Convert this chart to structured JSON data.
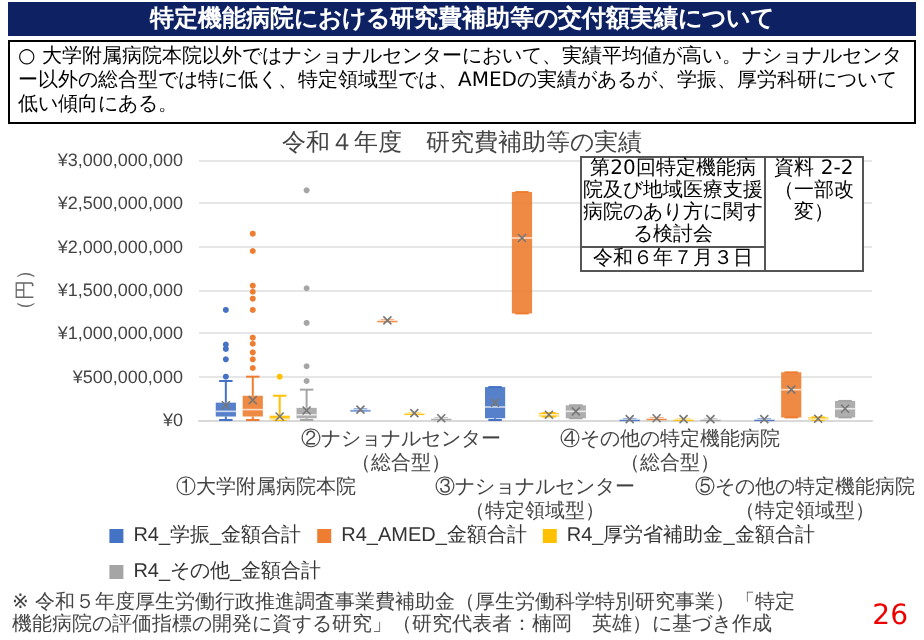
{
  "chart_data": {
    "type": "box",
    "title": "特定機能病院における研究費補助等の交付額実績について",
    "subtitle": "令和４年度　研究費補助等の実績",
    "ylabel": "（円）",
    "annotations": [
      "○ 大学附属病院本院以外ではナショナルセンターにおいて、実績平均値が高い。ナショナルセンター以外の総合型では特に低く、特定領域型では、AMEDの実績があるが、学振、厚労科研について低い傾向にある。",
      "第20回特定機能病院及び地域医療支援病院のあり方に関する検討会",
      "令和６年７月３日",
      "資料 2-2",
      "（一部改変）",
      "※ 令和５年度厚生労働行政推進調査事業費補助金（厚生労働科学特別研究事業）「特定機能病院の評価指標の開発に資する研究」（研究代表者：楠岡　英雄）に基づき作成",
      "26"
    ],
    "categories": [
      "①大学附属病院本院",
      "②ナショナルセンター（総合型）",
      "③ナショナルセンター（特定領域型）",
      "④その他の特定機能病院（総合型）",
      "⑤その他の特定機能病院（特定領域型）"
    ],
    "series": [
      {
        "name": "R4_学振_金額合計",
        "color": "#4472c4",
        "boxes": [
          {
            "low": 0,
            "q1": 40000000,
            "median": 100000000,
            "q3": 200000000,
            "high": 450000000,
            "mean": 170000000,
            "outliers": [
              500000000,
              700000000,
              820000000,
              870000000,
              1270000000
            ]
          },
          {
            "low": 120000000,
            "q1": 120000000,
            "median": 120000000,
            "q3": 120000000,
            "high": 120000000,
            "mean": 120000000
          },
          {
            "low": 0,
            "q1": 20000000,
            "median": 150000000,
            "q3": 380000000,
            "high": 380000000,
            "mean": 200000000
          },
          {
            "low": 10000000,
            "q1": 10000000,
            "median": 10000000,
            "q3": 10000000,
            "high": 10000000,
            "mean": 10000000
          },
          {
            "low": 10000000,
            "q1": 10000000,
            "median": 10000000,
            "q3": 10000000,
            "high": 10000000,
            "mean": 10000000
          }
        ]
      },
      {
        "name": "R4_AMED_金額合計",
        "color": "#ed7d31",
        "boxes": [
          {
            "low": 0,
            "q1": 40000000,
            "median": 120000000,
            "q3": 280000000,
            "high": 500000000,
            "mean": 230000000,
            "outliers": [
              600000000,
              700000000,
              780000000,
              880000000,
              950000000,
              1270000000,
              1400000000,
              1480000000,
              1550000000,
              1950000000,
              2150000000
            ]
          },
          {
            "low": 1150000000,
            "q1": 1150000000,
            "median": 1150000000,
            "q3": 1150000000,
            "high": 1150000000,
            "mean": 1150000000
          },
          {
            "low": 1230000000,
            "q1": 1230000000,
            "median": 2100000000,
            "q3": 2630000000,
            "high": 2630000000,
            "mean": 2100000000
          },
          {
            "low": 20000000,
            "q1": 20000000,
            "median": 20000000,
            "q3": 20000000,
            "high": 20000000,
            "mean": 20000000
          },
          {
            "low": 30000000,
            "q1": 30000000,
            "median": 350000000,
            "q3": 550000000,
            "high": 550000000,
            "mean": 350000000
          }
        ]
      },
      {
        "name": "R4_厚労省補助金_金額合計",
        "color": "#ffc000",
        "boxes": [
          {
            "low": 0,
            "q1": 0,
            "median": 10000000,
            "q3": 50000000,
            "high": 280000000,
            "mean": 40000000,
            "outliers": [
              500000000
            ]
          },
          {
            "low": 80000000,
            "q1": 80000000,
            "median": 80000000,
            "q3": 80000000,
            "high": 80000000,
            "mean": 80000000
          },
          {
            "low": 40000000,
            "q1": 40000000,
            "median": 60000000,
            "q3": 80000000,
            "high": 80000000,
            "mean": 60000000
          },
          {
            "low": 10000000,
            "q1": 10000000,
            "median": 10000000,
            "q3": 10000000,
            "high": 10000000,
            "mean": 10000000
          },
          {
            "low": 0,
            "q1": 0,
            "median": 10000000,
            "q3": 30000000,
            "high": 30000000,
            "mean": 15000000
          }
        ]
      },
      {
        "name": "R4_その他_金額合計",
        "color": "#a5a5a5",
        "boxes": [
          {
            "low": 0,
            "q1": 20000000,
            "median": 60000000,
            "q3": 140000000,
            "high": 350000000,
            "mean": 110000000,
            "outliers": [
              450000000,
              620000000,
              1120000000,
              1520000000,
              2650000000
            ]
          },
          {
            "low": 20000000,
            "q1": 20000000,
            "median": 20000000,
            "q3": 20000000,
            "high": 20000000,
            "mean": 20000000
          },
          {
            "low": 20000000,
            "q1": 20000000,
            "median": 100000000,
            "q3": 170000000,
            "high": 170000000,
            "mean": 100000000
          },
          {
            "low": 10000000,
            "q1": 10000000,
            "median": 10000000,
            "q3": 10000000,
            "high": 10000000,
            "mean": 10000000
          },
          {
            "low": 30000000,
            "q1": 30000000,
            "median": 130000000,
            "q3": 220000000,
            "high": 220000000,
            "mean": 130000000
          }
        ]
      }
    ],
    "ylim": [
      0,
      3000000000
    ],
    "yticks": [
      {
        "value": 0,
        "label": "¥0"
      },
      {
        "value": 500000000,
        "label": "¥500,000,000"
      },
      {
        "value": 1000000000,
        "label": "¥1,000,000,000"
      },
      {
        "value": 1500000000,
        "label": "¥1,500,000,000"
      },
      {
        "value": 2000000000,
        "label": "¥2,000,000,000"
      },
      {
        "value": 2500000000,
        "label": "¥2,500,000,000"
      },
      {
        "value": 3000000000,
        "label": "¥3,000,000,000"
      }
    ],
    "grid": "y",
    "legend": "bottom"
  }
}
